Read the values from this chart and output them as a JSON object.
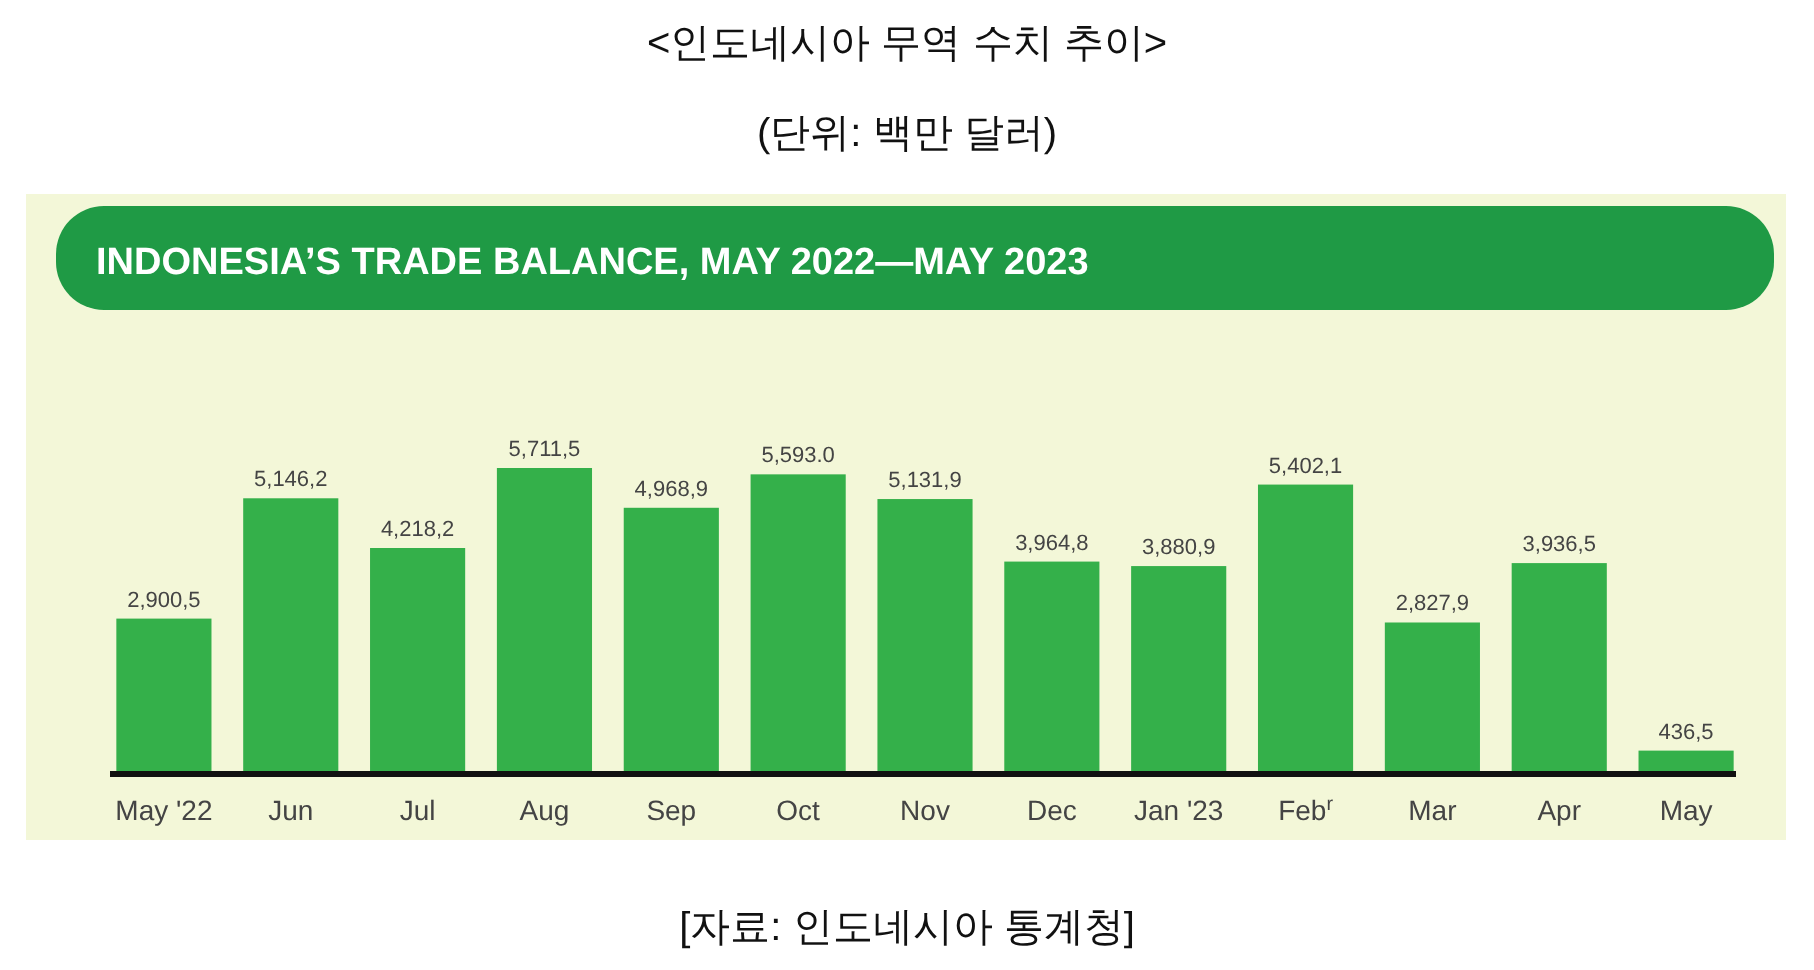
{
  "chart_data": {
    "type": "bar",
    "title": "<인도네시아 무역 수치 추이>",
    "subtitle": "(단위: 백만 달러)",
    "annotations": [
      "INDONESIA’S TRADE BALANCE, MAY 2022—MAY 2023",
      "[자료: 인도네시아 통계청]"
    ],
    "categories": [
      "May '22",
      "Jun",
      "Jul",
      "Aug",
      "Sep",
      "Oct",
      "Nov",
      "Dec",
      "Jan '23",
      "Feb$^{r}$",
      "Mar",
      "Apr",
      "May"
    ],
    "values": [
      2900.5,
      5146.2,
      4218.2,
      5711.5,
      4968.9,
      5593.0,
      5131.9,
      3964.8,
      3880.9,
      5402.1,
      2827.9,
      3936.5,
      436.5
    ],
    "value_labels": [
      "2,900,5",
      "5,146,2",
      "4,218,2",
      "5,711,5",
      "4,968,9",
      "5,593.0",
      "5,131,9",
      "3,964,8",
      "3,880,9",
      "5,402,1",
      "2,827,9",
      "3,936,5",
      "436,5"
    ],
    "color": "#34b04a"
  }
}
